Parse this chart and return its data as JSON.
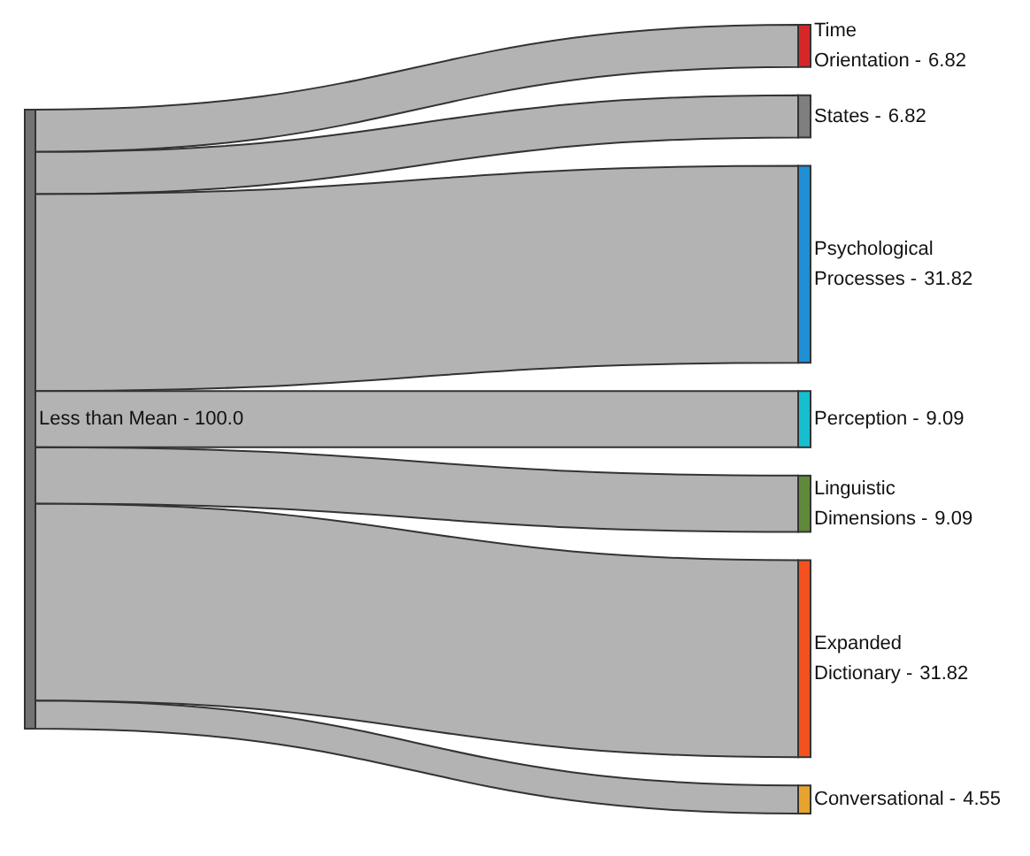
{
  "chart_data": {
    "type": "other",
    "annotations": [
      "Less than Mean - 100.0"
    ],
    "color": "#737373",
    "categories": [
      "Time Orientation -",
      "States -",
      "Psychological Processes -",
      "Perception -",
      "Linguistic Dimensions -",
      "Expanded Dictionary -",
      "Conversational -"
    ],
    "values": [
      6.82,
      6.82,
      31.82,
      9.09,
      9.09,
      31.82,
      4.55
    ],
    "colors": [
      "#d62728",
      "#7f7f7f",
      "#1f8fd6",
      "#17becf",
      "#5f8a3a",
      "#f4511e",
      "#e8a32e"
    ],
    "data_labels": true
  }
}
